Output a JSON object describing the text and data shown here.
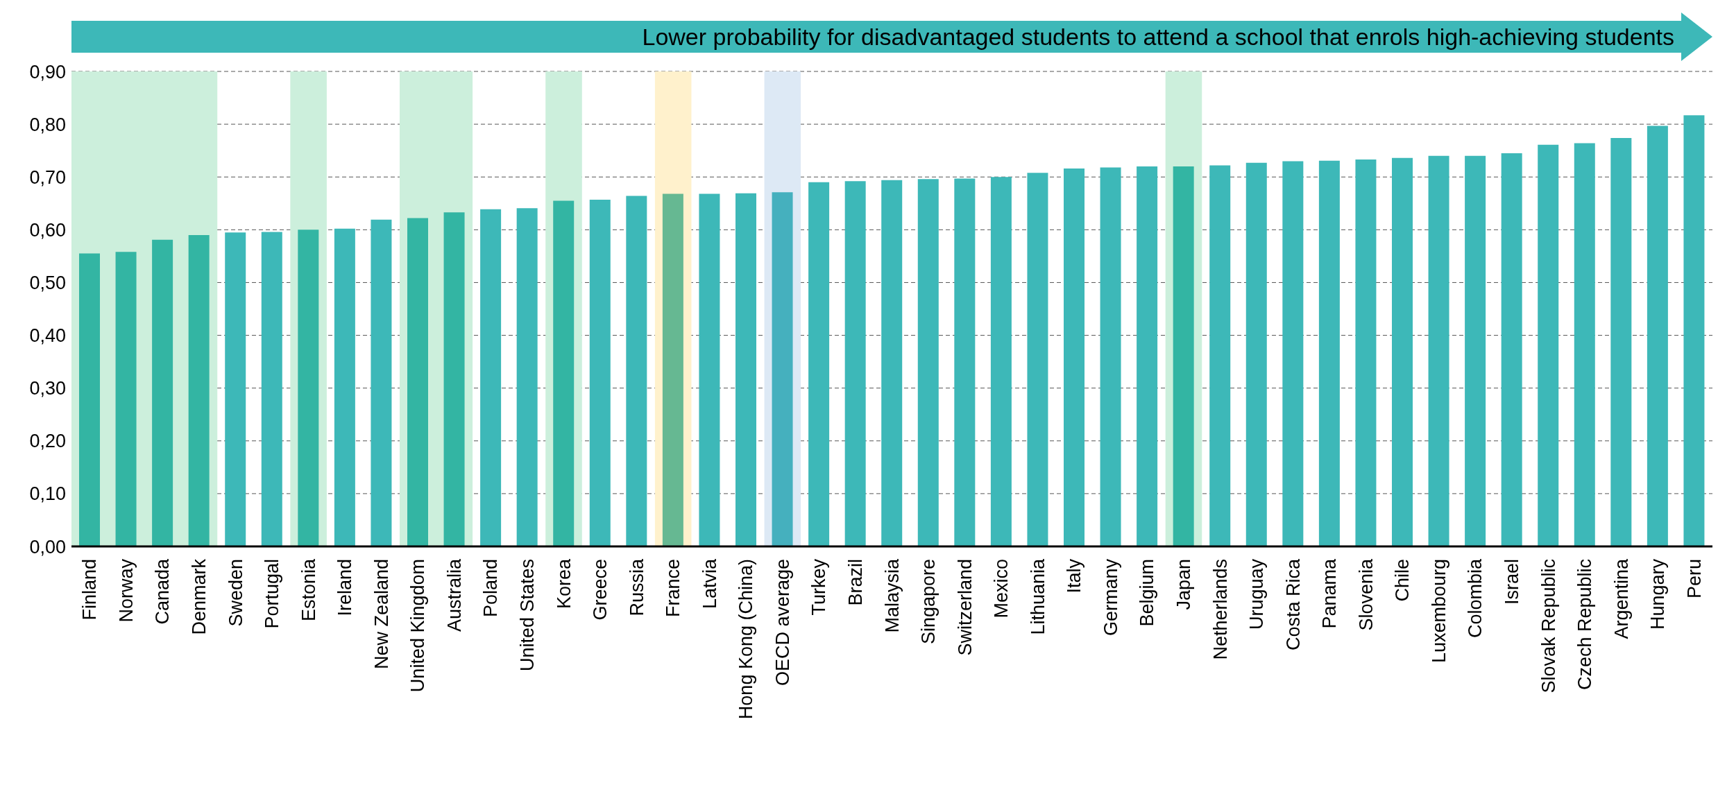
{
  "chart_data": {
    "type": "bar",
    "categories": [
      "Finland",
      "Norway",
      "Canada",
      "Denmark",
      "Sweden",
      "Portugal",
      "Estonia",
      "Ireland",
      "New Zealand",
      "United Kingdom",
      "Australia",
      "Poland",
      "United States",
      "Korea",
      "Greece",
      "Russia",
      "France",
      "Latvia",
      "Hong Kong (China)",
      "OECD average",
      "Turkey",
      "Brazil",
      "Malaysia",
      "Singapore",
      "Switzerland",
      "Mexico",
      "Lithuania",
      "Italy",
      "Germany",
      "Belgium",
      "Japan",
      "Netherlands",
      "Uruguay",
      "Costa Rica",
      "Panama",
      "Slovenia",
      "Chile",
      "Luxembourg",
      "Colombia",
      "Israel",
      "Slovak Republic",
      "Czech Republic",
      "Argentina",
      "Hungary",
      "Peru"
    ],
    "values": [
      0.555,
      0.558,
      0.581,
      0.59,
      0.595,
      0.596,
      0.6,
      0.602,
      0.619,
      0.622,
      0.633,
      0.639,
      0.641,
      0.655,
      0.657,
      0.664,
      0.668,
      0.668,
      0.669,
      0.671,
      0.69,
      0.692,
      0.694,
      0.696,
      0.697,
      0.7,
      0.708,
      0.716,
      0.718,
      0.72,
      0.72,
      0.722,
      0.727,
      0.73,
      0.731,
      0.733,
      0.736,
      0.74,
      0.74,
      0.745,
      0.761,
      0.764,
      0.774,
      0.797,
      0.817
    ],
    "colors": [
      "#33b5a3",
      "#33b5a3",
      "#33b5a3",
      "#33b5a3",
      "#3db8b8",
      "#3db8b8",
      "#33b5a3",
      "#3db8b8",
      "#3db8b8",
      "#33b5a3",
      "#33b5a3",
      "#3db8b8",
      "#3db8b8",
      "#33b5a3",
      "#3db8b8",
      "#3db8b8",
      "#66b892",
      "#3db8b8",
      "#3db8b8",
      "#45b0be",
      "#3db8b8",
      "#3db8b8",
      "#3db8b8",
      "#3db8b8",
      "#3db8b8",
      "#3db8b8",
      "#3db8b8",
      "#3db8b8",
      "#3db8b8",
      "#3db8b8",
      "#33b5a3",
      "#3db8b8",
      "#3db8b8",
      "#3db8b8",
      "#3db8b8",
      "#3db8b8",
      "#3db8b8",
      "#3db8b8",
      "#3db8b8",
      "#3db8b8",
      "#3db8b8",
      "#3db8b8",
      "#3db8b8",
      "#3db8b8",
      "#3db8b8"
    ],
    "ylim": [
      0,
      0.9
    ],
    "yticks": [
      {
        "value": 0,
        "label": "0,00"
      },
      {
        "value": 0.1,
        "label": "0,10"
      },
      {
        "value": 0.2,
        "label": "0,20"
      },
      {
        "value": 0.3,
        "label": "0,30"
      },
      {
        "value": 0.4,
        "label": "0,40"
      },
      {
        "value": 0.5,
        "label": "0,50"
      },
      {
        "value": 0.6,
        "label": "0,60"
      },
      {
        "value": 0.7,
        "label": "0,70"
      },
      {
        "value": 0.8,
        "label": "0,80"
      },
      {
        "value": 0.9,
        "label": "0,90"
      }
    ],
    "grid": "y",
    "bands": [
      {
        "axis": "x",
        "from": "Finland",
        "to": "Denmark",
        "color": "#ccefdc"
      },
      {
        "axis": "x",
        "from": "Estonia",
        "to": "Estonia",
        "color": "#ccefdc"
      },
      {
        "axis": "x",
        "from": "United Kingdom",
        "to": "Australia",
        "color": "#ccefdc"
      },
      {
        "axis": "x",
        "from": "Korea",
        "to": "Korea",
        "color": "#ccefdc"
      },
      {
        "axis": "x",
        "from": "France",
        "to": "France",
        "color": "#fff1cc"
      },
      {
        "axis": "x",
        "from": "OECD average",
        "to": "OECD average",
        "color": "#dde9f5"
      },
      {
        "axis": "x",
        "from": "Japan",
        "to": "Japan",
        "color": "#ccefdc"
      }
    ],
    "annotations": [
      "Lower probability for disadvantaged students to attend a school that enrols high-achieving students"
    ]
  }
}
